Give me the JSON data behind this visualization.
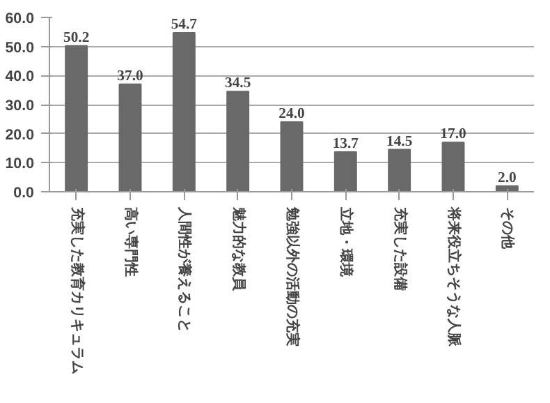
{
  "chart_data": {
    "type": "bar",
    "categories": [
      "充実した教育カリキュラム",
      "高い専門性",
      "人間性が養えること",
      "魅力的な教員",
      "勉強以外の活動の充実",
      "立地・環境",
      "充実した設備",
      "将来役立ちそうな人脈",
      "その他"
    ],
    "values": [
      50.2,
      37.0,
      54.7,
      34.5,
      24.0,
      13.7,
      14.5,
      17.0,
      2.0
    ],
    "value_labels": [
      "50.2",
      "37.0",
      "54.7",
      "34.5",
      "24.0",
      "13.7",
      "14.5",
      "17.0",
      "2.0"
    ],
    "color": "#696969",
    "ylim": [
      0,
      60
    ],
    "yticks": [
      {
        "value": 0,
        "label": "0.0"
      },
      {
        "value": 10,
        "label": "10.0"
      },
      {
        "value": 20,
        "label": "20.0"
      },
      {
        "value": 30,
        "label": "30.0"
      },
      {
        "value": 40,
        "label": "40.0"
      },
      {
        "value": 50,
        "label": "50.0"
      },
      {
        "value": 60,
        "label": "60.0"
      }
    ],
    "grid": "y"
  }
}
